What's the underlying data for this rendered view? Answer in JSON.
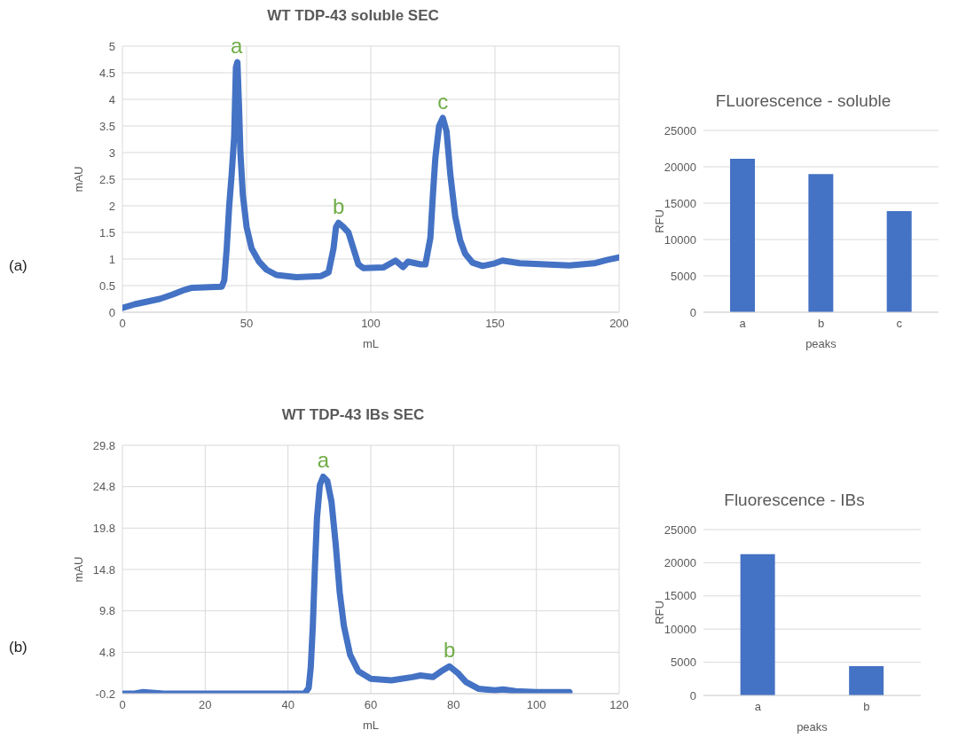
{
  "chart_data": [
    {
      "type": "line",
      "title": "WT TDP-43 soluble SEC",
      "xlabel": "mL",
      "ylabel": "mAU",
      "xlim": [
        0,
        200
      ],
      "xticks": [
        0,
        50,
        100,
        150,
        200
      ],
      "ylim": [
        0,
        5
      ],
      "yticks": [
        0,
        0.5,
        1,
        1.5,
        2,
        2.5,
        3,
        3.5,
        4,
        4.5,
        5
      ],
      "grid": true,
      "series": [
        {
          "color": "#4472c4",
          "x": [
            0,
            5,
            10,
            15,
            20,
            25,
            28,
            35,
            40,
            41,
            42,
            43,
            44,
            45,
            45.7,
            46.3,
            47,
            47.5,
            48.5,
            50,
            52,
            55,
            58,
            62,
            70,
            80,
            83,
            85,
            86,
            87,
            89,
            91,
            93,
            95,
            97,
            105,
            110,
            113,
            115,
            120,
            122,
            124,
            125,
            126,
            127.5,
            129,
            130.5,
            132,
            134,
            136,
            138,
            141,
            145,
            150,
            153,
            160,
            170,
            180,
            190,
            195,
            200
          ],
          "values": [
            0.08,
            0.15,
            0.2,
            0.25,
            0.33,
            0.42,
            0.46,
            0.47,
            0.48,
            0.6,
            1.2,
            2.0,
            2.6,
            3.3,
            4.6,
            4.7,
            3.8,
            3.0,
            2.2,
            1.6,
            1.2,
            0.95,
            0.8,
            0.7,
            0.66,
            0.68,
            0.75,
            1.2,
            1.6,
            1.68,
            1.6,
            1.5,
            1.2,
            0.9,
            0.83,
            0.84,
            0.97,
            0.85,
            0.95,
            0.9,
            0.9,
            1.4,
            2.2,
            2.9,
            3.5,
            3.65,
            3.4,
            2.6,
            1.8,
            1.35,
            1.1,
            0.93,
            0.87,
            0.92,
            0.97,
            0.92,
            0.9,
            0.88,
            0.92,
            0.98,
            1.03
          ]
        }
      ],
      "annotations": [
        "(a)",
        {
          "text": "a",
          "x": 46,
          "y": 4.7
        },
        {
          "text": "b",
          "x": 87,
          "y": 1.68
        },
        {
          "text": "c",
          "x": 129,
          "y": 3.65
        }
      ]
    },
    {
      "type": "bar",
      "title": "FLuorescence - soluble",
      "xlabel": "peaks",
      "ylabel": "RFU",
      "categories": [
        "a",
        "b",
        "c"
      ],
      "ylim": [
        0,
        25000
      ],
      "yticks": [
        0,
        5000,
        10000,
        15000,
        20000,
        25000
      ],
      "grid": "y",
      "series": [
        {
          "color": "#4472c4",
          "values": [
            21100,
            19000,
            13900
          ]
        }
      ]
    },
    {
      "type": "line",
      "title": "WT TDP-43 IBs SEC",
      "xlabel": "mL",
      "ylabel": "mAU",
      "xlim": [
        0,
        120
      ],
      "xticks": [
        0,
        20,
        40,
        60,
        80,
        100,
        120
      ],
      "ylim": [
        -0.2,
        29.8
      ],
      "yticks": [
        -0.2,
        4.8,
        9.8,
        14.8,
        19.8,
        24.8,
        29.8
      ],
      "grid": true,
      "series": [
        {
          "color": "#4472c4",
          "x": [
            0,
            3,
            5,
            10,
            44,
            45,
            45.5,
            46,
            46.5,
            47,
            47.7,
            48.5,
            49.5,
            50.5,
            51.5,
            52.5,
            53.5,
            55,
            57,
            60,
            65,
            70,
            72,
            75,
            77,
            79,
            81,
            83,
            86,
            90,
            92,
            95,
            100,
            108
          ],
          "values": [
            -0.2,
            -0.2,
            0.0,
            -0.2,
            -0.2,
            0.5,
            3,
            8,
            15,
            21,
            25,
            26,
            25.5,
            23,
            18,
            12,
            8,
            4.5,
            2.5,
            1.6,
            1.4,
            1.8,
            2.0,
            1.8,
            2.5,
            3.1,
            2.3,
            1.2,
            0.4,
            0.2,
            0.3,
            0.1,
            0.0,
            0.0
          ]
        }
      ],
      "annotations": [
        "(b)",
        {
          "text": "a",
          "x": 48.5,
          "y": 26
        },
        {
          "text": "b",
          "x": 79,
          "y": 3.1
        }
      ]
    },
    {
      "type": "bar",
      "title": "Fluorescence - IBs",
      "xlabel": "peaks",
      "ylabel": "RFU",
      "categories": [
        "a",
        "b"
      ],
      "ylim": [
        0,
        25000
      ],
      "yticks": [
        0,
        5000,
        10000,
        15000,
        20000,
        25000
      ],
      "grid": "y",
      "series": [
        {
          "color": "#4472c4",
          "values": [
            21300,
            4400
          ]
        }
      ]
    }
  ]
}
